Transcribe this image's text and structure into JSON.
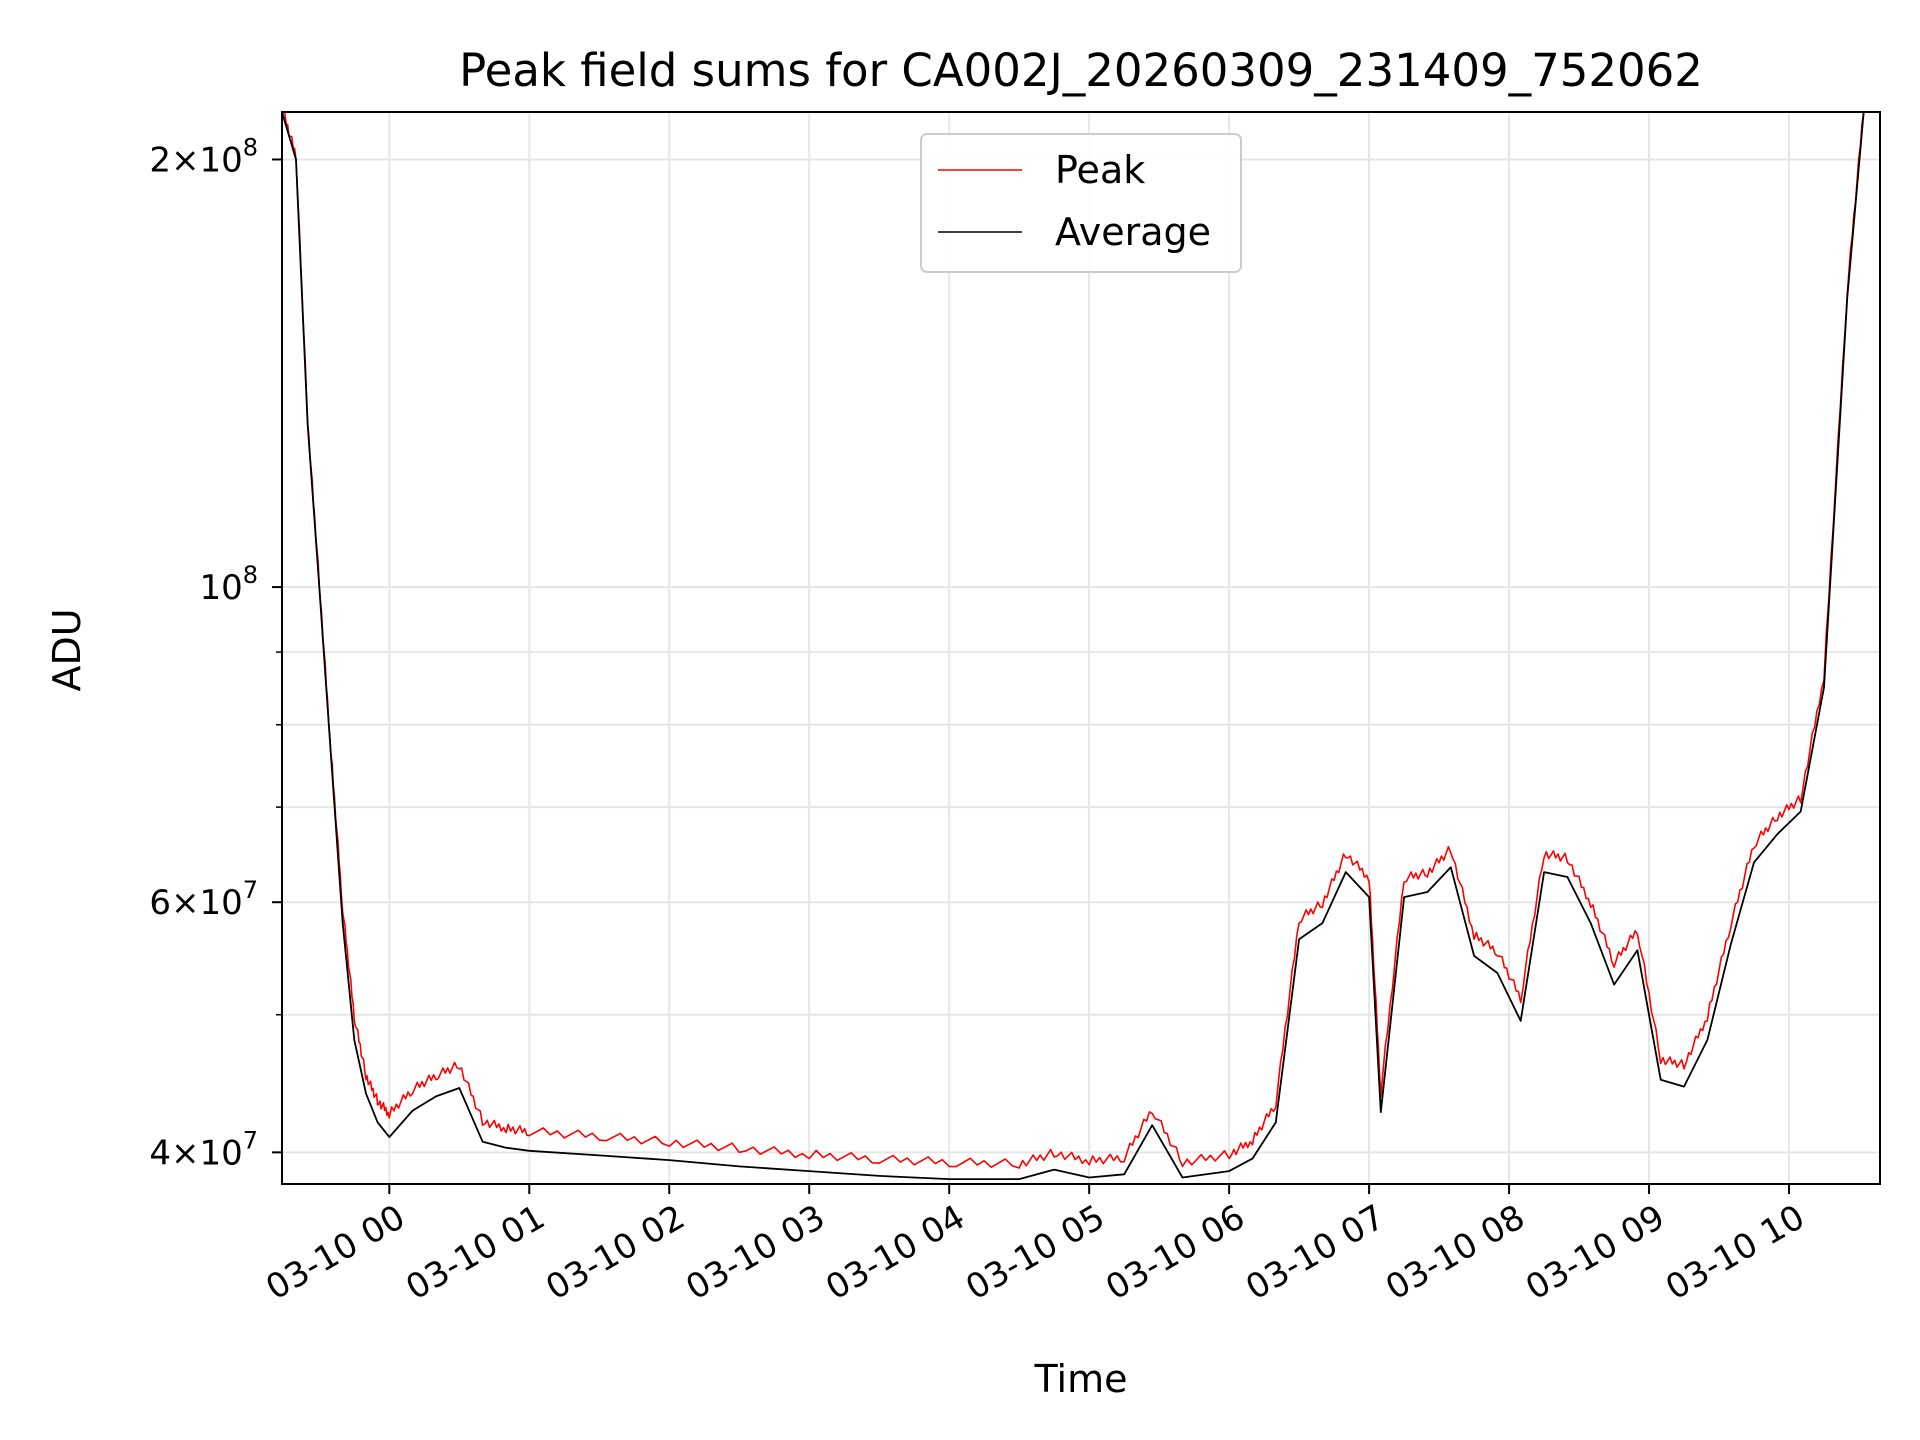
{
  "chart_data": {
    "type": "line",
    "title": "Peak field sums for CA002J_20260309_231409_752062",
    "xlabel": "Time",
    "ylabel": "ADU",
    "yscale": "log",
    "grid": true,
    "legend_position": "upper center",
    "xlim": [
      "2026-03-09 23:14",
      "2026-03-10 10:39"
    ],
    "ylim": [
      38000000,
      216000000
    ],
    "x_ticks": [
      "03-10 00",
      "03-10 01",
      "03-10 02",
      "03-10 03",
      "03-10 04",
      "03-10 05",
      "03-10 06",
      "03-10 07",
      "03-10 08",
      "03-10 09",
      "03-10 10"
    ],
    "y_ticks": [
      {
        "value": 40000000,
        "mantissa": "4",
        "exponent": "7"
      },
      {
        "value": 60000000,
        "mantissa": "6",
        "exponent": "7"
      },
      {
        "value": 100000000,
        "mantissa": "",
        "exponent": "8"
      },
      {
        "value": 200000000,
        "mantissa": "2",
        "exponent": "8"
      }
    ],
    "series": [
      {
        "name": "Peak",
        "color": "#ff0000"
      },
      {
        "name": "Average",
        "color": "#000000"
      }
    ],
    "x": [
      "2026-03-09 23:14",
      "2026-03-09 23:20",
      "2026-03-09 23:25",
      "2026-03-09 23:30",
      "2026-03-09 23:35",
      "2026-03-09 23:40",
      "2026-03-09 23:45",
      "2026-03-09 23:50",
      "2026-03-09 23:55",
      "2026-03-10 00:00",
      "2026-03-10 00:10",
      "2026-03-10 00:20",
      "2026-03-10 00:30",
      "2026-03-10 00:40",
      "2026-03-10 00:50",
      "2026-03-10 01:00",
      "2026-03-10 01:30",
      "2026-03-10 02:00",
      "2026-03-10 02:30",
      "2026-03-10 03:00",
      "2026-03-10 03:30",
      "2026-03-10 04:00",
      "2026-03-10 04:30",
      "2026-03-10 04:45",
      "2026-03-10 05:00",
      "2026-03-10 05:15",
      "2026-03-10 05:27",
      "2026-03-10 05:40",
      "2026-03-10 06:00",
      "2026-03-10 06:10",
      "2026-03-10 06:20",
      "2026-03-10 06:30",
      "2026-03-10 06:40",
      "2026-03-10 06:50",
      "2026-03-10 07:00",
      "2026-03-10 07:05",
      "2026-03-10 07:15",
      "2026-03-10 07:25",
      "2026-03-10 07:35",
      "2026-03-10 07:45",
      "2026-03-10 07:55",
      "2026-03-10 08:05",
      "2026-03-10 08:15",
      "2026-03-10 08:25",
      "2026-03-10 08:35",
      "2026-03-10 08:45",
      "2026-03-10 08:55",
      "2026-03-10 09:05",
      "2026-03-10 09:15",
      "2026-03-10 09:25",
      "2026-03-10 09:35",
      "2026-03-10 09:45",
      "2026-03-10 09:55",
      "2026-03-10 10:05",
      "2026-03-10 10:15",
      "2026-03-10 10:25",
      "2026-03-10 10:32"
    ],
    "average": [
      216000000,
      200000000,
      130000000,
      100000000,
      76000000,
      58000000,
      48000000,
      44000000,
      42000000,
      41000000,
      42800000,
      43800000,
      44400000,
      40700000,
      40300000,
      40100000,
      39800000,
      39500000,
      39100000,
      38800000,
      38500000,
      38300000,
      38300000,
      38900000,
      38400000,
      38600000,
      41800000,
      38400000,
      38800000,
      39600000,
      42000000,
      56500000,
      58000000,
      63000000,
      60500000,
      42700000,
      60500000,
      61000000,
      63500000,
      55000000,
      53500000,
      49500000,
      63000000,
      62500000,
      58000000,
      52500000,
      55500000,
      45000000,
      44500000,
      48000000,
      56000000,
      64000000,
      67000000,
      69500000,
      85000000,
      160000000,
      216000000
    ],
    "peak": [
      216000000,
      200000000,
      130000000,
      100000000,
      76000000,
      59000000,
      49500000,
      45000000,
      43200000,
      42300000,
      44000000,
      45000000,
      45800000,
      41800000,
      41300000,
      41100000,
      40800000,
      40400000,
      40000000,
      39600000,
      39300000,
      39100000,
      39000000,
      39700000,
      39200000,
      39400000,
      42600000,
      39100000,
      39600000,
      40500000,
      43000000,
      58000000,
      59500000,
      64500000,
      62000000,
      43800000,
      62000000,
      62500000,
      65000000,
      56500000,
      55000000,
      51000000,
      64500000,
      64000000,
      59500000,
      54000000,
      57000000,
      46200000,
      45800000,
      49500000,
      57500000,
      65500000,
      68500000,
      70500000,
      86000000,
      161000000,
      216000000
    ]
  }
}
